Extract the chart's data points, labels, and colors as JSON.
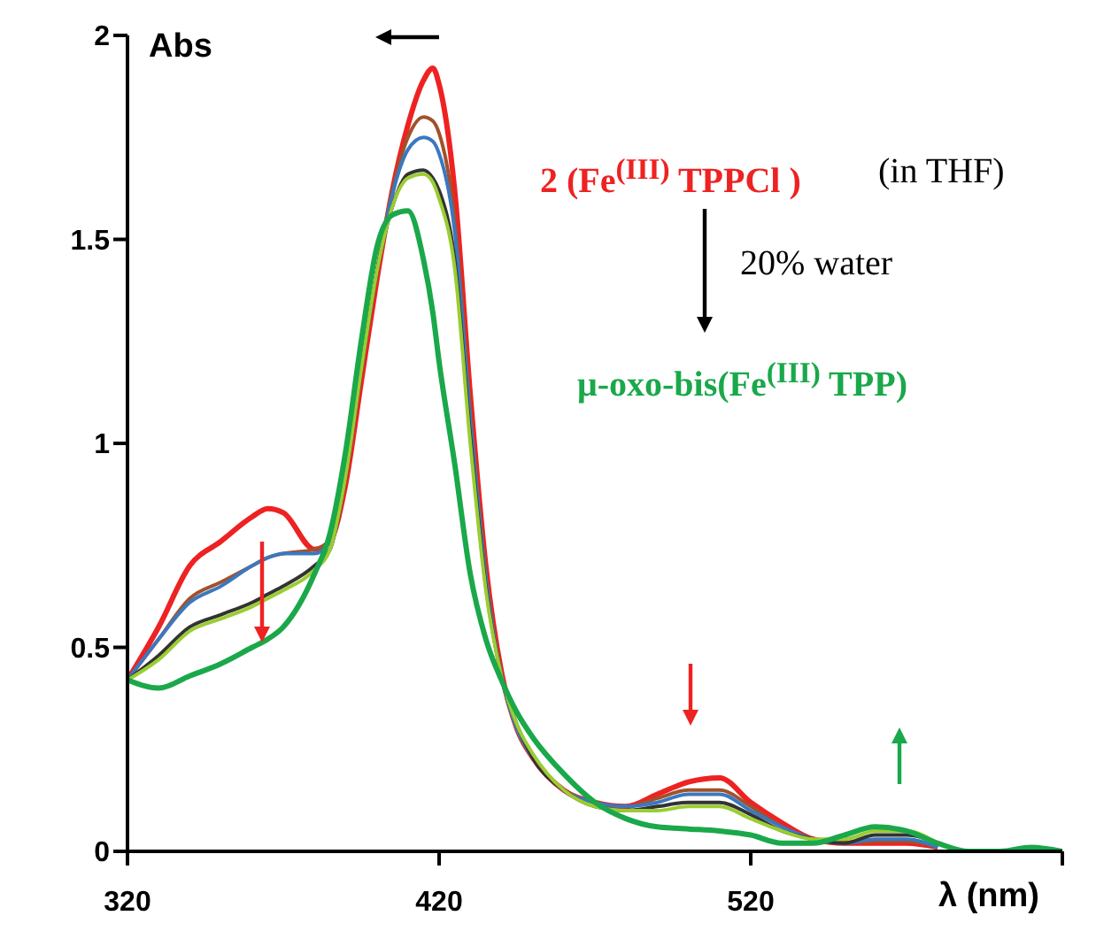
{
  "chart_data": {
    "type": "line",
    "xlabel": "λ (nm)",
    "ylabel": "Abs",
    "x": [
      320,
      330,
      340,
      350,
      360,
      365,
      370,
      380,
      385,
      390,
      395,
      400,
      405,
      410,
      415,
      418,
      420,
      425,
      430,
      435,
      440,
      445,
      450,
      460,
      470,
      480,
      490,
      500,
      510,
      520,
      530,
      540,
      550,
      560,
      570,
      580,
      590,
      600,
      610,
      620
    ],
    "series": [
      {
        "color": "#ee2222",
        "values": [
          0.42,
          0.55,
          0.7,
          0.76,
          0.82,
          0.84,
          0.83,
          0.74,
          0.76,
          0.9,
          1.15,
          1.4,
          1.62,
          1.78,
          1.89,
          1.92,
          1.88,
          1.62,
          1.12,
          0.7,
          0.44,
          0.3,
          0.23,
          0.15,
          0.12,
          0.11,
          0.14,
          0.17,
          0.18,
          0.12,
          0.07,
          0.03,
          0.02,
          0.02,
          0.02,
          0.01,
          null,
          null,
          null,
          null
        ]
      },
      {
        "color": "#a0522d",
        "values": [
          0.42,
          0.52,
          0.62,
          0.66,
          0.7,
          0.72,
          0.73,
          0.74,
          0.76,
          0.92,
          1.18,
          1.42,
          1.62,
          1.75,
          1.8,
          1.79,
          1.76,
          1.55,
          1.08,
          0.68,
          0.43,
          0.3,
          0.23,
          0.15,
          0.12,
          0.11,
          0.13,
          0.15,
          0.15,
          0.11,
          0.06,
          0.03,
          0.02,
          0.025,
          0.025,
          0.01,
          null,
          null,
          null,
          null
        ]
      },
      {
        "color": "#3a78c0",
        "values": [
          0.42,
          0.52,
          0.61,
          0.65,
          0.7,
          0.72,
          0.73,
          0.73,
          0.76,
          0.92,
          1.18,
          1.42,
          1.61,
          1.72,
          1.75,
          1.74,
          1.71,
          1.52,
          1.06,
          0.67,
          0.43,
          0.3,
          0.23,
          0.15,
          0.12,
          0.11,
          0.12,
          0.14,
          0.14,
          0.1,
          0.06,
          0.03,
          0.02,
          0.03,
          0.03,
          0.01,
          null,
          null,
          null,
          null
        ]
      },
      {
        "color": "#333333",
        "values": [
          0.42,
          0.48,
          0.55,
          0.58,
          0.61,
          0.63,
          0.65,
          0.7,
          0.74,
          0.92,
          1.18,
          1.42,
          1.58,
          1.66,
          1.67,
          1.65,
          1.62,
          1.45,
          1.02,
          0.65,
          0.43,
          0.31,
          0.23,
          0.15,
          0.11,
          0.1,
          0.11,
          0.12,
          0.12,
          0.09,
          0.05,
          0.03,
          0.02,
          0.04,
          0.04,
          0.02,
          null,
          null,
          null,
          null
        ]
      },
      {
        "color": "#9acd32",
        "values": [
          0.42,
          0.47,
          0.54,
          0.57,
          0.6,
          0.62,
          0.64,
          0.69,
          0.74,
          0.92,
          1.18,
          1.42,
          1.58,
          1.65,
          1.66,
          1.64,
          1.6,
          1.43,
          1.0,
          0.64,
          0.43,
          0.31,
          0.24,
          0.15,
          0.11,
          0.1,
          0.1,
          0.11,
          0.11,
          0.08,
          0.05,
          0.03,
          0.03,
          0.05,
          0.05,
          0.02,
          null,
          null,
          null,
          null
        ]
      },
      {
        "color": "#1aa84a",
        "values": [
          0.42,
          0.4,
          0.43,
          0.46,
          0.5,
          0.52,
          0.55,
          0.68,
          0.78,
          0.98,
          1.25,
          1.48,
          1.56,
          1.57,
          1.45,
          1.32,
          1.2,
          0.95,
          0.68,
          0.52,
          0.42,
          0.34,
          0.28,
          0.19,
          0.12,
          0.08,
          0.06,
          0.055,
          0.05,
          0.04,
          0.02,
          0.02,
          0.04,
          0.06,
          0.05,
          0.02,
          0,
          0,
          0.01,
          0
        ]
      }
    ],
    "xlim": [
      320,
      620
    ],
    "xticks": [
      320,
      420,
      520,
      {
        "value": 620,
        "label": null
      }
    ],
    "ylim": [
      0,
      2
    ],
    "yticks": [
      0,
      0.5,
      1,
      1.5,
      2
    ],
    "grid": false,
    "legend": false,
    "marker": "none",
    "annotations": [
      "2 (Fe$^{(III)}$ TPPCl )",
      "(in THF)",
      "20% water",
      "μ-oxo-bis(Fe$^{(III)}$ TPP)"
    ]
  }
}
